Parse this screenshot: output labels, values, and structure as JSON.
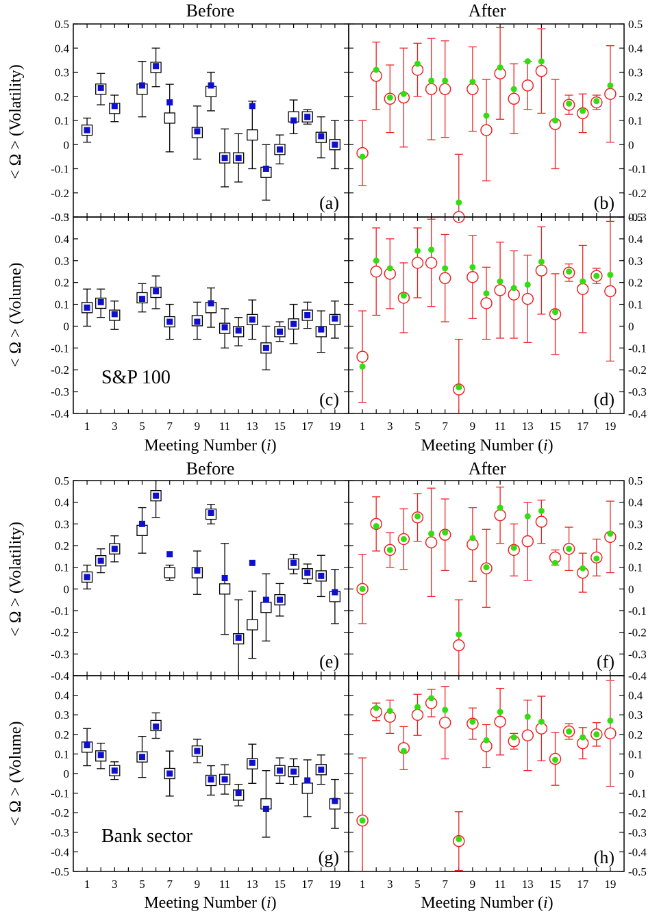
{
  "figure": {
    "groups": [
      {
        "before_title": "Before",
        "after_title": "After",
        "xlabel_left": "Meeting Number (i)",
        "xlabel_right": "Meeting Number (i)",
        "row_labels": [
          "< Ω > (Volatility)",
          "< Ω > (Volume)"
        ],
        "annotation": "S&P 100"
      },
      {
        "before_title": "Before",
        "after_title": "After",
        "xlabel_left": "Meeting Number (i)",
        "xlabel_right": "Meeting Number (i)",
        "row_labels": [
          "< Ω > (Volatility)",
          "< Ω > (Volume)"
        ],
        "annotation": "Bank sector"
      }
    ]
  },
  "colors": {
    "before_marker": "#1010cc",
    "after_marker": "#33dd11",
    "after_errorbar": "#ee2222",
    "axis": "#000000"
  },
  "chart_data": [
    {
      "panel": "(a)",
      "type": "scatter",
      "section": "Before",
      "ylabel": "< Ω > (Volatility)",
      "xlim": [
        0,
        20
      ],
      "ylim": [
        -0.3,
        0.5
      ],
      "yticks": [
        "0.5",
        "0.4",
        "0.3",
        "0.2",
        "0.1",
        "0",
        "-0.1",
        "-0.2",
        "-0.3"
      ],
      "xticks": [
        "1",
        "3",
        "5",
        "7",
        "9",
        "11",
        "13",
        "15",
        "17",
        "19"
      ],
      "x": [
        1,
        2,
        3,
        5,
        6,
        7,
        9,
        10,
        11,
        12,
        13,
        14,
        15,
        16,
        17,
        18,
        19
      ],
      "open": [
        0.06,
        0.23,
        0.15,
        0.23,
        0.32,
        0.11,
        0.05,
        0.22,
        -0.055,
        -0.055,
        0.04,
        -0.115,
        -0.02,
        0.115,
        0.115,
        0.03,
        0
      ],
      "err": [
        0.05,
        0.065,
        0.055,
        0.115,
        0.08,
        0.14,
        0.11,
        0.08,
        0.12,
        0.1,
        0.14,
        0.115,
        0.06,
        0.07,
        0.03,
        0.085,
        0.1
      ],
      "filled": [
        0.06,
        0.235,
        0.16,
        0.245,
        0.325,
        0.175,
        0.055,
        0.245,
        -0.055,
        -0.055,
        0.16,
        -0.1,
        -0.02,
        0.1,
        0.115,
        0.035,
        0
      ]
    },
    {
      "panel": "(b)",
      "type": "scatter",
      "section": "After",
      "ylabel": "< Ω > (Volatility)",
      "xlim": [
        0,
        20
      ],
      "ylim": [
        -0.3,
        0.5
      ],
      "yticks": [
        "0.5",
        "0.4",
        "0.3",
        "0.2",
        "0.1",
        "0",
        "-0.1",
        "-0.2",
        "-0.3"
      ],
      "xticks": [
        "1",
        "3",
        "5",
        "7",
        "9",
        "11",
        "13",
        "15",
        "17",
        "19"
      ],
      "x": [
        1,
        2,
        3,
        4,
        5,
        6,
        7,
        8,
        9,
        10,
        11,
        12,
        13,
        14,
        15,
        16,
        17,
        18,
        19
      ],
      "open": [
        -0.035,
        0.285,
        0.19,
        0.195,
        0.31,
        0.23,
        0.23,
        -0.3,
        0.23,
        0.06,
        0.295,
        0.19,
        0.245,
        0.305,
        0.085,
        0.165,
        0.13,
        0.175,
        0.21
      ],
      "err": [
        0.135,
        0.14,
        0.14,
        0.205,
        0.11,
        0.21,
        0.2,
        0.26,
        0.175,
        0.21,
        0.19,
        0.145,
        0.1,
        0.175,
        0.185,
        0.04,
        0.08,
        0.03,
        0.2
      ],
      "filled": [
        -0.05,
        0.31,
        0.195,
        0.21,
        0.335,
        0.265,
        0.265,
        -0.24,
        0.26,
        0.12,
        0.32,
        0.23,
        0.345,
        0.345,
        0.1,
        0.17,
        0.14,
        0.18,
        0.245
      ]
    },
    {
      "panel": "(c)",
      "type": "scatter",
      "section": "Before",
      "ylabel": "< Ω > (Volume)",
      "xlim": [
        0,
        20
      ],
      "ylim": [
        -0.4,
        0.5
      ],
      "yticks": [
        "0.5",
        "0.4",
        "0.3",
        "0.2",
        "0.1",
        "0",
        "-0.1",
        "-0.2",
        "-0.3",
        "-0.4"
      ],
      "xticks": [
        "1",
        "3",
        "5",
        "7",
        "9",
        "11",
        "13",
        "15",
        "17",
        "19"
      ],
      "xlabel": "Meeting Number (i)",
      "x": [
        1,
        2,
        3,
        5,
        6,
        7,
        9,
        10,
        11,
        12,
        13,
        14,
        15,
        16,
        17,
        18,
        19
      ],
      "open": [
        0.085,
        0.105,
        0.05,
        0.13,
        0.155,
        0.02,
        0.025,
        0.085,
        -0.01,
        -0.025,
        0.03,
        -0.1,
        -0.025,
        0.01,
        0.05,
        -0.025,
        0.03
      ],
      "err": [
        0.085,
        0.065,
        0.065,
        0.065,
        0.075,
        0.08,
        0.085,
        0.09,
        0.09,
        0.065,
        0.09,
        0.1,
        0.045,
        0.09,
        0.06,
        0.095,
        0.085
      ],
      "filled": [
        0.085,
        0.11,
        0.055,
        0.125,
        0.16,
        0.02,
        0.02,
        0.105,
        -0.005,
        -0.02,
        0.03,
        -0.1,
        -0.025,
        0.01,
        0.05,
        -0.015,
        0.035
      ]
    },
    {
      "panel": "(d)",
      "type": "scatter",
      "section": "After",
      "ylabel": "< Ω > (Volume)",
      "xlim": [
        0,
        20
      ],
      "ylim": [
        -0.4,
        0.5
      ],
      "yticks": [
        "0.5",
        "0.4",
        "0.3",
        "0.2",
        "0.1",
        "0",
        "-0.1",
        "-0.2",
        "-0.3",
        "-0.4"
      ],
      "xticks": [
        "1",
        "3",
        "5",
        "7",
        "9",
        "11",
        "13",
        "15",
        "17",
        "19"
      ],
      "xlabel": "Meeting Number (i)",
      "x": [
        1,
        2,
        3,
        4,
        5,
        6,
        7,
        8,
        9,
        10,
        11,
        12,
        13,
        14,
        15,
        16,
        17,
        18,
        19
      ],
      "open": [
        -0.14,
        0.25,
        0.24,
        0.13,
        0.29,
        0.29,
        0.22,
        -0.29,
        0.225,
        0.105,
        0.165,
        0.145,
        0.125,
        0.255,
        0.055,
        0.245,
        0.17,
        0.23,
        0.16
      ],
      "err": [
        0.21,
        0.2,
        0.16,
        0.16,
        0.16,
        0.2,
        0.2,
        0.23,
        0.19,
        0.165,
        0.22,
        0.2,
        0.2,
        0.2,
        0.185,
        0.04,
        0.2,
        0.035,
        0.32
      ],
      "filled": [
        -0.185,
        0.3,
        0.265,
        0.14,
        0.345,
        0.35,
        0.265,
        -0.28,
        0.27,
        0.15,
        0.205,
        0.175,
        0.19,
        0.295,
        0.065,
        0.25,
        0.205,
        0.23,
        0.235
      ]
    },
    {
      "panel": "(e)",
      "type": "scatter",
      "section": "Before",
      "ylabel": "< Ω > (Volatility)",
      "xlim": [
        0,
        20
      ],
      "ylim": [
        -0.4,
        0.5
      ],
      "yticks": [
        "0.5",
        "0.4",
        "0.3",
        "0.2",
        "0.1",
        "0",
        "-0.1",
        "-0.2",
        "-0.3",
        "-0.4"
      ],
      "xticks": [
        "1",
        "3",
        "5",
        "7",
        "9",
        "11",
        "13",
        "15",
        "17",
        "19"
      ],
      "x": [
        1,
        2,
        3,
        5,
        6,
        7,
        9,
        10,
        11,
        12,
        13,
        14,
        15,
        16,
        17,
        18,
        19
      ],
      "open": [
        0.055,
        0.13,
        0.185,
        0.27,
        0.43,
        0.075,
        0.075,
        0.345,
        0,
        -0.23,
        -0.165,
        -0.085,
        -0.05,
        0.115,
        0.07,
        0.06,
        -0.035
      ],
      "err": [
        0.055,
        0.055,
        0.06,
        0.105,
        0.1,
        0.035,
        0.1,
        0.045,
        0.21,
        0.18,
        0.155,
        0.155,
        0.075,
        0.045,
        0.045,
        0.095,
        0.125
      ],
      "filled": [
        0.055,
        0.13,
        0.185,
        0.3,
        0.43,
        0.16,
        0.085,
        0.35,
        0.05,
        -0.225,
        0.12,
        -0.05,
        -0.05,
        0.12,
        0.075,
        0.06,
        -0.015
      ]
    },
    {
      "panel": "(f)",
      "type": "scatter",
      "section": "After",
      "ylabel": "< Ω > (Volatility)",
      "xlim": [
        0,
        20
      ],
      "ylim": [
        -0.4,
        0.5
      ],
      "yticks": [
        "0.5",
        "0.4",
        "0.3",
        "0.2",
        "0.1",
        "0",
        "-0.1",
        "-0.2",
        "-0.3",
        "-0.4"
      ],
      "xticks": [
        "1",
        "3",
        "5",
        "7",
        "9",
        "11",
        "13",
        "15",
        "17",
        "19"
      ],
      "x": [
        1,
        2,
        3,
        4,
        5,
        6,
        7,
        8,
        9,
        10,
        11,
        12,
        13,
        14,
        15,
        16,
        17,
        18,
        19
      ],
      "open": [
        0,
        0.3,
        0.18,
        0.23,
        0.33,
        0.215,
        0.25,
        -0.26,
        0.205,
        0.095,
        0.34,
        0.18,
        0.22,
        0.31,
        0.145,
        0.185,
        0.075,
        0.145,
        0.24
      ],
      "err": [
        0.16,
        0.125,
        0.08,
        0.14,
        0.11,
        0.25,
        0.165,
        0.21,
        0.17,
        0.18,
        0.13,
        0.12,
        0.18,
        0.1,
        0.035,
        0.1,
        0.09,
        0.085,
        0.165
      ],
      "filled": [
        0,
        0.29,
        0.18,
        0.23,
        0.335,
        0.255,
        0.26,
        -0.21,
        0.235,
        0.1,
        0.375,
        0.19,
        0.335,
        0.36,
        0.12,
        0.185,
        0.095,
        0.14,
        0.255
      ]
    },
    {
      "panel": "(g)",
      "type": "scatter",
      "section": "Before",
      "ylabel": "< Ω > (Volume)",
      "xlim": [
        0,
        20
      ],
      "ylim": [
        -0.5,
        0.5
      ],
      "yticks": [
        "0.4",
        "0.3",
        "0.2",
        "0.1",
        "0",
        "-0.1",
        "-0.2",
        "-0.3",
        "-0.4",
        "-0.5"
      ],
      "xticks": [
        "1",
        "3",
        "5",
        "7",
        "9",
        "11",
        "13",
        "15",
        "17",
        "19"
      ],
      "xlabel": "Meeting Number (i)",
      "x": [
        1,
        2,
        3,
        5,
        6,
        7,
        9,
        10,
        11,
        12,
        13,
        14,
        15,
        16,
        17,
        18,
        19
      ],
      "open": [
        0.135,
        0.09,
        0.015,
        0.085,
        0.245,
        0,
        0.115,
        -0.035,
        -0.03,
        -0.11,
        0.05,
        -0.155,
        0.015,
        0.01,
        -0.075,
        0.02,
        -0.155
      ],
      "err": [
        0.095,
        0.065,
        0.045,
        0.105,
        0.065,
        0.115,
        0.06,
        0.075,
        0.075,
        0.055,
        0.1,
        0.17,
        0.065,
        0.065,
        0.145,
        0.075,
        0.125
      ],
      "filled": [
        0.145,
        0.095,
        0.015,
        0.085,
        0.24,
        0,
        0.115,
        -0.03,
        -0.03,
        -0.1,
        0.055,
        -0.18,
        0.015,
        0.01,
        -0.035,
        0.02,
        -0.14
      ]
    },
    {
      "panel": "(h)",
      "type": "scatter",
      "section": "After",
      "ylabel": "< Ω > (Volume)",
      "xlim": [
        0,
        20
      ],
      "ylim": [
        -0.5,
        0.5
      ],
      "yticks": [
        "0.4",
        "0.3",
        "0.2",
        "0.1",
        "0",
        "-0.1",
        "-0.2",
        "-0.3",
        "-0.4",
        "-0.5"
      ],
      "xticks": [
        "1",
        "3",
        "5",
        "7",
        "9",
        "11",
        "13",
        "15",
        "17",
        "19"
      ],
      "xlabel": "Meeting Number (i)",
      "x": [
        1,
        2,
        3,
        4,
        5,
        6,
        7,
        8,
        9,
        10,
        11,
        12,
        13,
        14,
        15,
        16,
        17,
        18,
        19
      ],
      "open": [
        -0.24,
        0.315,
        0.29,
        0.13,
        0.3,
        0.36,
        0.26,
        -0.345,
        0.255,
        0.14,
        0.265,
        0.165,
        0.195,
        0.23,
        0.075,
        0.215,
        0.155,
        0.2,
        0.205
      ],
      "err": [
        0.32,
        0.045,
        0.085,
        0.11,
        0.105,
        0.07,
        0.185,
        0.15,
        0.08,
        0.11,
        0.17,
        0.04,
        0.18,
        0.165,
        0.135,
        0.04,
        0.08,
        0.06,
        0.27
      ],
      "filled": [
        -0.24,
        0.335,
        0.32,
        0.115,
        0.34,
        0.385,
        0.325,
        -0.335,
        0.265,
        0.17,
        0.315,
        0.185,
        0.29,
        0.265,
        0.07,
        0.215,
        0.185,
        0.2,
        0.27
      ]
    }
  ]
}
